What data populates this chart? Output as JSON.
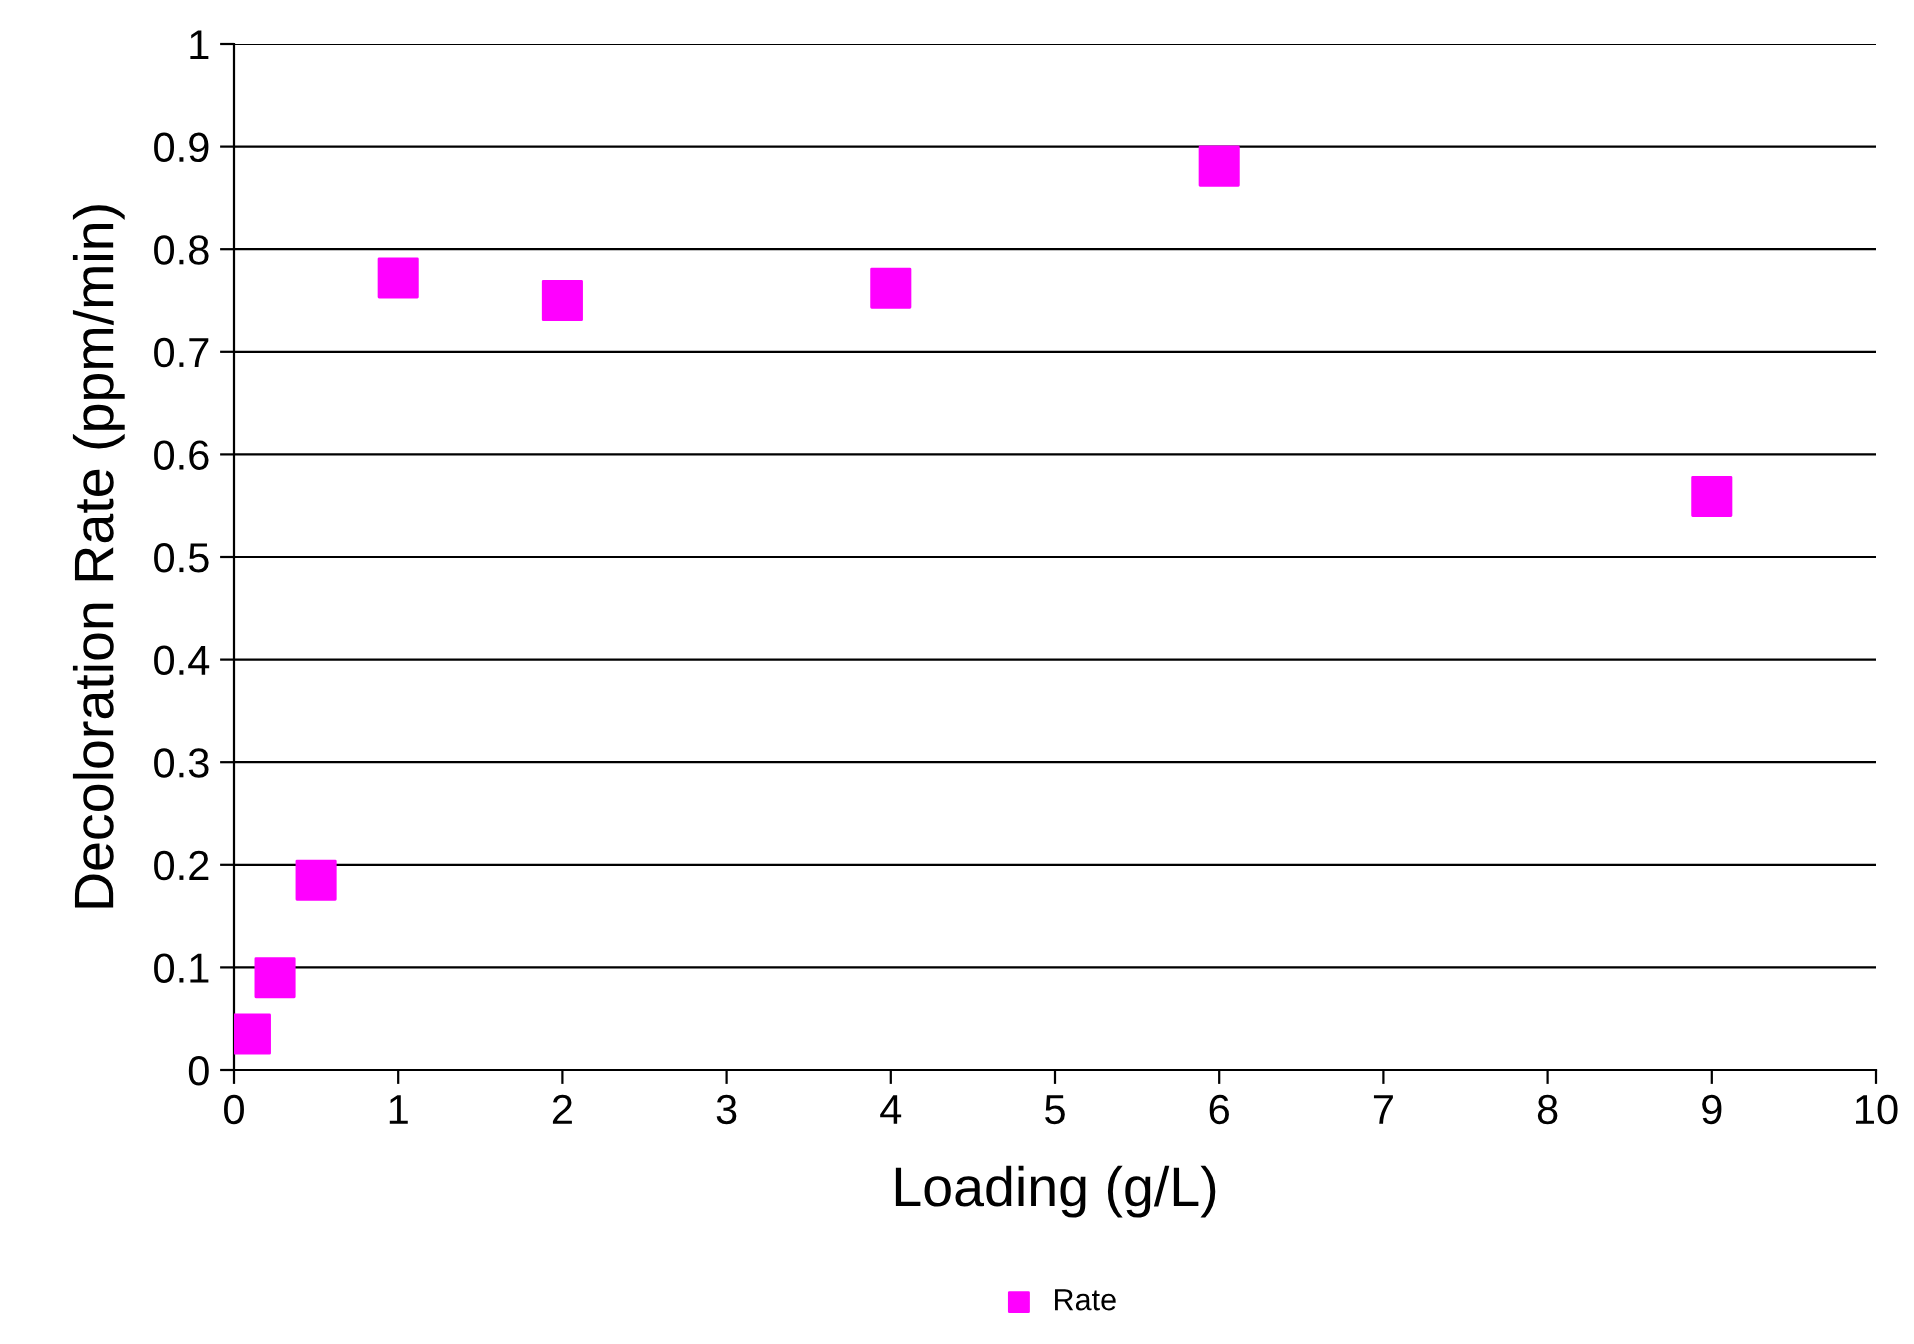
{
  "chart_data": {
    "type": "scatter",
    "xlabel": "Loading (g/L)",
    "ylabel": "Decoloration Rate (ppm/min)",
    "x": [
      0.1,
      0.25,
      0.5,
      1,
      2,
      4,
      6,
      9
    ],
    "series": [
      {
        "name": "Rate",
        "color": "#ff00ff",
        "values": [
          0.035,
          0.09,
          0.185,
          0.772,
          0.75,
          0.762,
          0.881,
          0.559
        ]
      }
    ],
    "xlim": [
      0,
      10
    ],
    "xticks": [
      0,
      1,
      2,
      3,
      4,
      5,
      6,
      7,
      8,
      9,
      10
    ],
    "ylim": [
      0,
      1
    ],
    "yticks": [
      0,
      0.1,
      0.2,
      0.3,
      0.4,
      0.5,
      0.6,
      0.7,
      0.8,
      0.9,
      1
    ],
    "grid": "y",
    "legend": "bottom",
    "marker": "square"
  }
}
